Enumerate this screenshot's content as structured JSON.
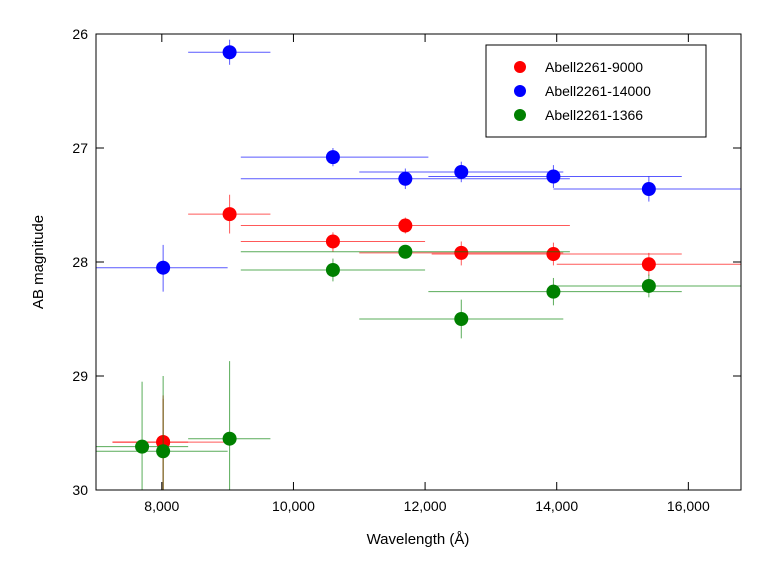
{
  "chart_data": {
    "type": "scatter",
    "title": "",
    "xlabel": "Wavelength (Å)",
    "ylabel": "AB magnitude",
    "xlim": [
      7000,
      16800
    ],
    "ylim": [
      30,
      26
    ],
    "y_inverted": true,
    "grid": false,
    "legend_position": "top-right",
    "x_ticks": [
      8000,
      10000,
      12000,
      14000,
      16000
    ],
    "x_tick_labels": [
      "8,000",
      "10,000",
      "12,000",
      "14,000",
      "16,000"
    ],
    "y_ticks": [
      26,
      27,
      28,
      29,
      30
    ],
    "y_tick_labels": [
      "26",
      "27",
      "28",
      "29",
      "30"
    ],
    "series": [
      {
        "name": "Abell2261-9000",
        "color": "#ff0000",
        "points": [
          {
            "x": 9030,
            "y": 27.58,
            "xerr": [
              8400,
              9650
            ],
            "yerr": [
              27.41,
              27.75
            ]
          },
          {
            "x": 10600,
            "y": 27.82,
            "xerr": [
              9200,
              12000
            ],
            "yerr": [
              27.74,
              27.91
            ]
          },
          {
            "x": 11700,
            "y": 27.68,
            "xerr": [
              9200,
              14200
            ],
            "yerr": [
              27.61,
              27.75
            ]
          },
          {
            "x": 12550,
            "y": 27.92,
            "xerr": [
              11000,
              14100
            ],
            "yerr": [
              27.82,
              28.03
            ]
          },
          {
            "x": 13950,
            "y": 27.93,
            "xerr": [
              12100,
              15900
            ],
            "yerr": [
              27.83,
              28.03
            ]
          },
          {
            "x": 15400,
            "y": 28.02,
            "xerr": [
              14000,
              16800
            ],
            "yerr": [
              27.92,
              28.12
            ]
          },
          {
            "x": 8020,
            "y": 29.58,
            "xerr": [
              7250,
              9050
            ],
            "yerr": [
              29.17,
              30.0
            ]
          },
          {
            "x": 8020,
            "y": 29.58,
            "xerr": [
              7250,
              8400
            ],
            "yerr": [
              29.2,
              30.0
            ]
          }
        ]
      },
      {
        "name": "Abell2261-14000",
        "color": "#0000ff",
        "points": [
          {
            "x": 9030,
            "y": 26.16,
            "xerr": [
              8400,
              9650
            ],
            "yerr": [
              26.05,
              26.27
            ]
          },
          {
            "x": 10600,
            "y": 27.08,
            "xerr": [
              9200,
              12050
            ],
            "yerr": [
              27.0,
              27.16
            ]
          },
          {
            "x": 11700,
            "y": 27.27,
            "xerr": [
              9200,
              14200
            ],
            "yerr": [
              27.18,
              27.36
            ]
          },
          {
            "x": 12550,
            "y": 27.21,
            "xerr": [
              11000,
              14100
            ],
            "yerr": [
              27.12,
              27.3
            ]
          },
          {
            "x": 13950,
            "y": 27.25,
            "xerr": [
              12050,
              15900
            ],
            "yerr": [
              27.15,
              27.35
            ]
          },
          {
            "x": 15400,
            "y": 27.36,
            "xerr": [
              13950,
              16800
            ],
            "yerr": [
              27.25,
              27.47
            ]
          },
          {
            "x": 8020,
            "y": 28.05,
            "xerr": [
              7000,
              9000
            ],
            "yerr": [
              27.85,
              28.26
            ]
          }
        ]
      },
      {
        "name": "Abell2261-1366",
        "color": "#008000",
        "points": [
          {
            "x": 11700,
            "y": 27.91,
            "xerr": [
              9200,
              14200
            ],
            "yerr": [
              27.86,
              27.97
            ]
          },
          {
            "x": 10600,
            "y": 28.07,
            "xerr": [
              9200,
              12000
            ],
            "yerr": [
              27.97,
              28.17
            ]
          },
          {
            "x": 12550,
            "y": 28.5,
            "xerr": [
              11000,
              14100
            ],
            "yerr": [
              28.33,
              28.67
            ]
          },
          {
            "x": 13950,
            "y": 28.26,
            "xerr": [
              12050,
              15900
            ],
            "yerr": [
              28.14,
              28.38
            ]
          },
          {
            "x": 15400,
            "y": 28.21,
            "xerr": [
              13950,
              16800
            ],
            "yerr": [
              28.11,
              28.31
            ]
          },
          {
            "x": 9030,
            "y": 29.55,
            "xerr": [
              8400,
              9650
            ],
            "yerr": [
              28.87,
              30.0
            ]
          },
          {
            "x": 7700,
            "y": 29.62,
            "xerr": [
              7000,
              8400
            ],
            "yerr": [
              29.05,
              30.0
            ]
          },
          {
            "x": 8020,
            "y": 29.66,
            "xerr": [
              7000,
              9000
            ],
            "yerr": [
              29.0,
              30.0
            ]
          }
        ]
      }
    ]
  }
}
